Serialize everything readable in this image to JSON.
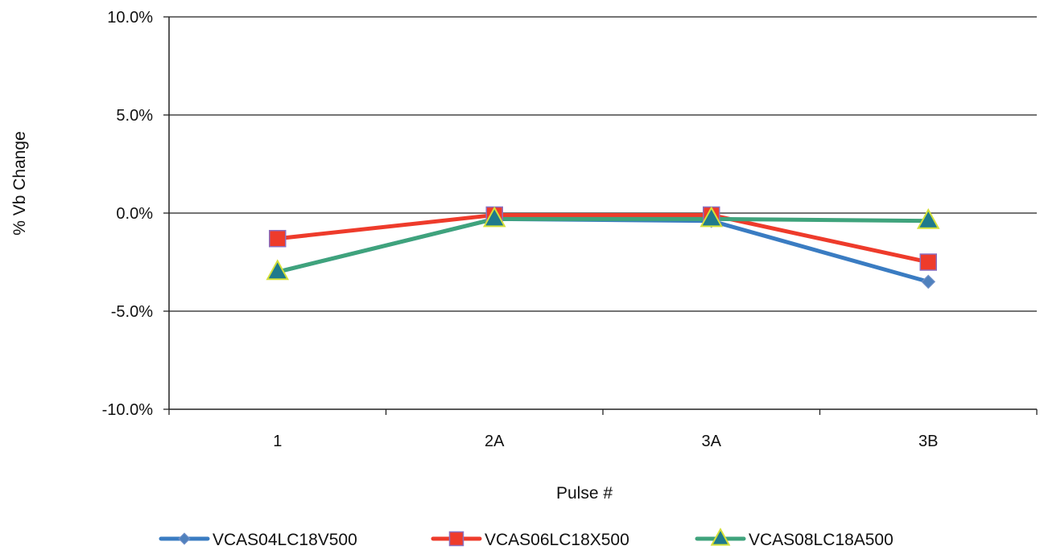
{
  "chart_data": {
    "type": "line",
    "title": "",
    "xlabel": "Pulse #",
    "ylabel": "% Vb Change",
    "categories": [
      "1",
      "2A",
      "3A",
      "3B"
    ],
    "ylim": [
      -10.0,
      10.0
    ],
    "y_ticks": [
      10.0,
      5.0,
      0.0,
      -5.0,
      -10.0
    ],
    "y_tick_labels": [
      "10.0%",
      "5.0%",
      "0.0%",
      "-5.0%",
      "-10.0%"
    ],
    "y_unit": "%",
    "grid": "horizontal",
    "legend_position": "bottom",
    "series": [
      {
        "name": "VCAS04LC18V500",
        "marker": "diamond",
        "color": "#3A7CC2",
        "marker_color": "#4F81BD",
        "values": [
          -3.0,
          -0.3,
          -0.4,
          -3.5
        ]
      },
      {
        "name": "VCAS06LC18X500",
        "marker": "square",
        "color": "#EE3B2B",
        "marker_color": "#EE3B2B",
        "values": [
          -1.3,
          -0.1,
          -0.1,
          -2.5
        ]
      },
      {
        "name": "VCAS08LC18A500",
        "marker": "triangle",
        "color": "#3FA37C",
        "marker_color": "#1F7A8C",
        "values": [
          -3.0,
          -0.3,
          -0.3,
          -0.4
        ]
      }
    ]
  }
}
